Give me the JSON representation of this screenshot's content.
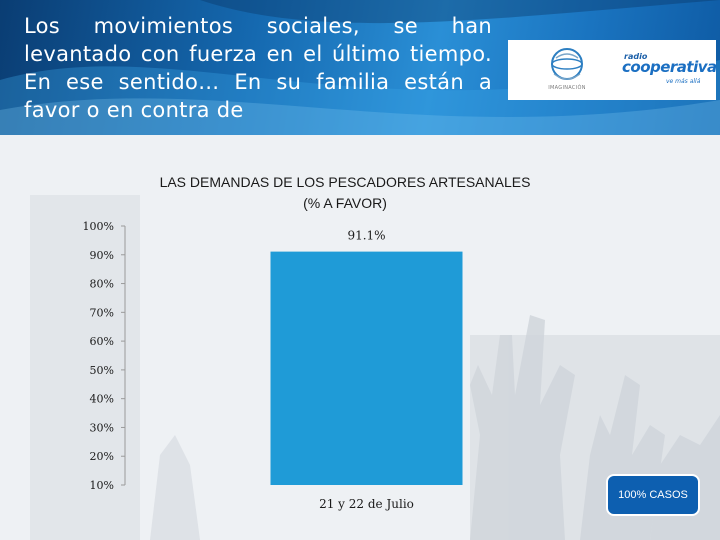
{
  "header": {
    "question": "Los movimientos sociales, se han levantado con fuerza en el último tiempo. En ese sentido… En su familia están a favor o en contra de"
  },
  "logos": {
    "imaginacion_label": "IMAGINACIÓN",
    "radio_word": "radio",
    "cooperativa_word": "cooperativa",
    "cooperativa_tagline": "ve más allá"
  },
  "chart_data": {
    "type": "bar",
    "title": "LAS DEMANDAS DE LOS PESCADORES ARTESANALES",
    "subtitle": "(% A FAVOR)",
    "categories": [
      "21 y 22 de Julio"
    ],
    "values": [
      91.1
    ],
    "data_labels": [
      "91.1%"
    ],
    "ylim": [
      10,
      100
    ],
    "yticks": [
      100,
      90,
      80,
      70,
      60,
      50,
      40,
      30,
      20,
      10
    ],
    "ytick_labels": [
      "100%",
      "90%",
      "80%",
      "70%",
      "60%",
      "50%",
      "40%",
      "30%",
      "20%",
      "10%"
    ],
    "grid": false,
    "bar_color": "#1f9bd7"
  },
  "footer": {
    "cases_badge": "100% CASOS"
  }
}
